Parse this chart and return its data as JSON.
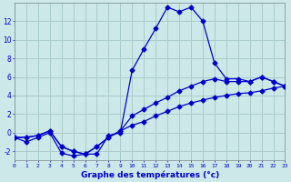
{
  "xlabel": "Graphe des températures (°c)",
  "background_color": "#cce8e8",
  "grid_color": "#aacccc",
  "line_color": "#0000cc",
  "hours": [
    0,
    1,
    2,
    3,
    4,
    5,
    6,
    7,
    8,
    9,
    10,
    11,
    12,
    13,
    14,
    15,
    16,
    17,
    18,
    19,
    20,
    21,
    22,
    23
  ],
  "temp_main": [
    -0.5,
    -1.0,
    -0.5,
    0.0,
    -2.2,
    -2.5,
    -2.3,
    -2.3,
    -0.3,
    0.0,
    6.7,
    9.0,
    11.2,
    13.5,
    13.0,
    13.5,
    12.0,
    7.5,
    5.8,
    5.8,
    5.5,
    6.0,
    5.5,
    5.0
  ],
  "temp_mid": [
    -0.5,
    -0.5,
    -0.3,
    0.2,
    -1.5,
    -2.0,
    -2.3,
    -1.5,
    -0.5,
    0.2,
    1.8,
    2.5,
    3.2,
    3.8,
    4.5,
    5.0,
    5.5,
    5.8,
    5.5,
    5.5,
    5.5,
    6.0,
    5.5,
    5.0
  ],
  "temp_low": [
    -0.5,
    -0.5,
    -0.3,
    0.2,
    -1.5,
    -2.0,
    -2.3,
    -1.5,
    -0.5,
    0.2,
    0.8,
    1.2,
    1.8,
    2.3,
    2.8,
    3.2,
    3.5,
    3.8,
    4.0,
    4.2,
    4.3,
    4.5,
    4.8,
    5.0
  ],
  "ylim": [
    -3.0,
    14.0
  ],
  "yticks": [
    -2,
    0,
    2,
    4,
    6,
    8,
    10,
    12
  ],
  "xlim": [
    0,
    23
  ],
  "xtick_labels": [
    "0",
    "1",
    "2",
    "3",
    "4",
    "5",
    "6",
    "7",
    "8",
    "9",
    "10",
    "11",
    "12",
    "13",
    "14",
    "15",
    "16",
    "17",
    "18",
    "19",
    "20",
    "21",
    "22",
    "23"
  ]
}
